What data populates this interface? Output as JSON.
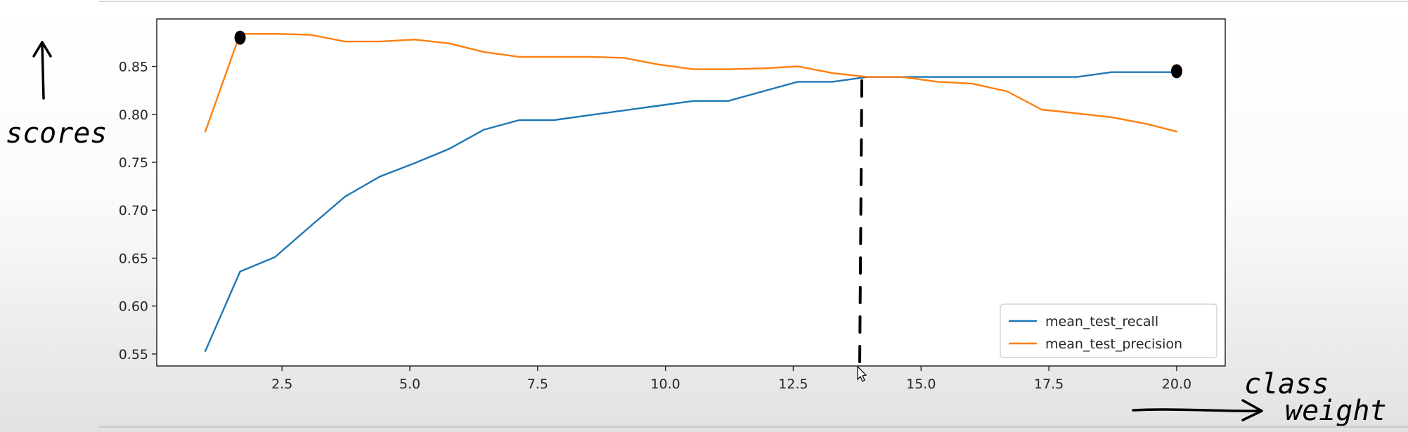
{
  "chart_data": {
    "type": "line",
    "x": [
      1.0,
      1.68,
      2.36,
      3.05,
      3.73,
      4.41,
      5.09,
      5.77,
      6.45,
      7.14,
      7.82,
      8.5,
      9.18,
      9.86,
      10.55,
      11.23,
      11.91,
      12.59,
      13.27,
      13.95,
      14.64,
      15.32,
      16.0,
      16.68,
      17.36,
      18.05,
      18.73,
      19.41,
      20.0
    ],
    "series": [
      {
        "name": "mean_test_recall",
        "color": "#1f77b4",
        "values": [
          0.553,
          0.636,
          0.651,
          0.683,
          0.714,
          0.735,
          0.749,
          0.764,
          0.784,
          0.794,
          0.794,
          0.799,
          0.804,
          0.809,
          0.814,
          0.814,
          0.824,
          0.834,
          0.834,
          0.839,
          0.839,
          0.839,
          0.839,
          0.839,
          0.839,
          0.839,
          0.844,
          0.844,
          0.844
        ]
      },
      {
        "name": "mean_test_precision",
        "color": "#ff7f0e",
        "values": [
          0.782,
          0.884,
          0.884,
          0.883,
          0.876,
          0.876,
          0.878,
          0.874,
          0.865,
          0.86,
          0.86,
          0.86,
          0.859,
          0.852,
          0.847,
          0.847,
          0.848,
          0.85,
          0.843,
          0.839,
          0.839,
          0.834,
          0.832,
          0.824,
          0.805,
          0.801,
          0.797,
          0.79,
          0.782
        ]
      }
    ],
    "xticks": [
      "2.5",
      "5.0",
      "7.5",
      "10.0",
      "12.5",
      "15.0",
      "17.5",
      "20.0"
    ],
    "xtick_values": [
      2.5,
      5.0,
      7.5,
      10.0,
      12.5,
      15.0,
      17.5,
      20.0
    ],
    "yticks": [
      "0.55",
      "0.60",
      "0.65",
      "0.70",
      "0.75",
      "0.80",
      "0.85"
    ],
    "ytick_values": [
      0.55,
      0.6,
      0.65,
      0.7,
      0.75,
      0.8,
      0.85
    ],
    "xlim": [
      0.05,
      20.95
    ],
    "ylim": [
      0.5375,
      0.8995
    ],
    "grid": false,
    "legend_position": "bottom-right",
    "title": "",
    "xlabel": "",
    "ylabel": ""
  },
  "annotations": {
    "y_text": "scores",
    "x_text_line1": "class",
    "x_text_line2": "weight",
    "marker_points": [
      {
        "x": 1.68,
        "y": 0.88
      },
      {
        "x": 20.0,
        "y": 0.845
      }
    ],
    "dashed_line_x": 13.8
  }
}
